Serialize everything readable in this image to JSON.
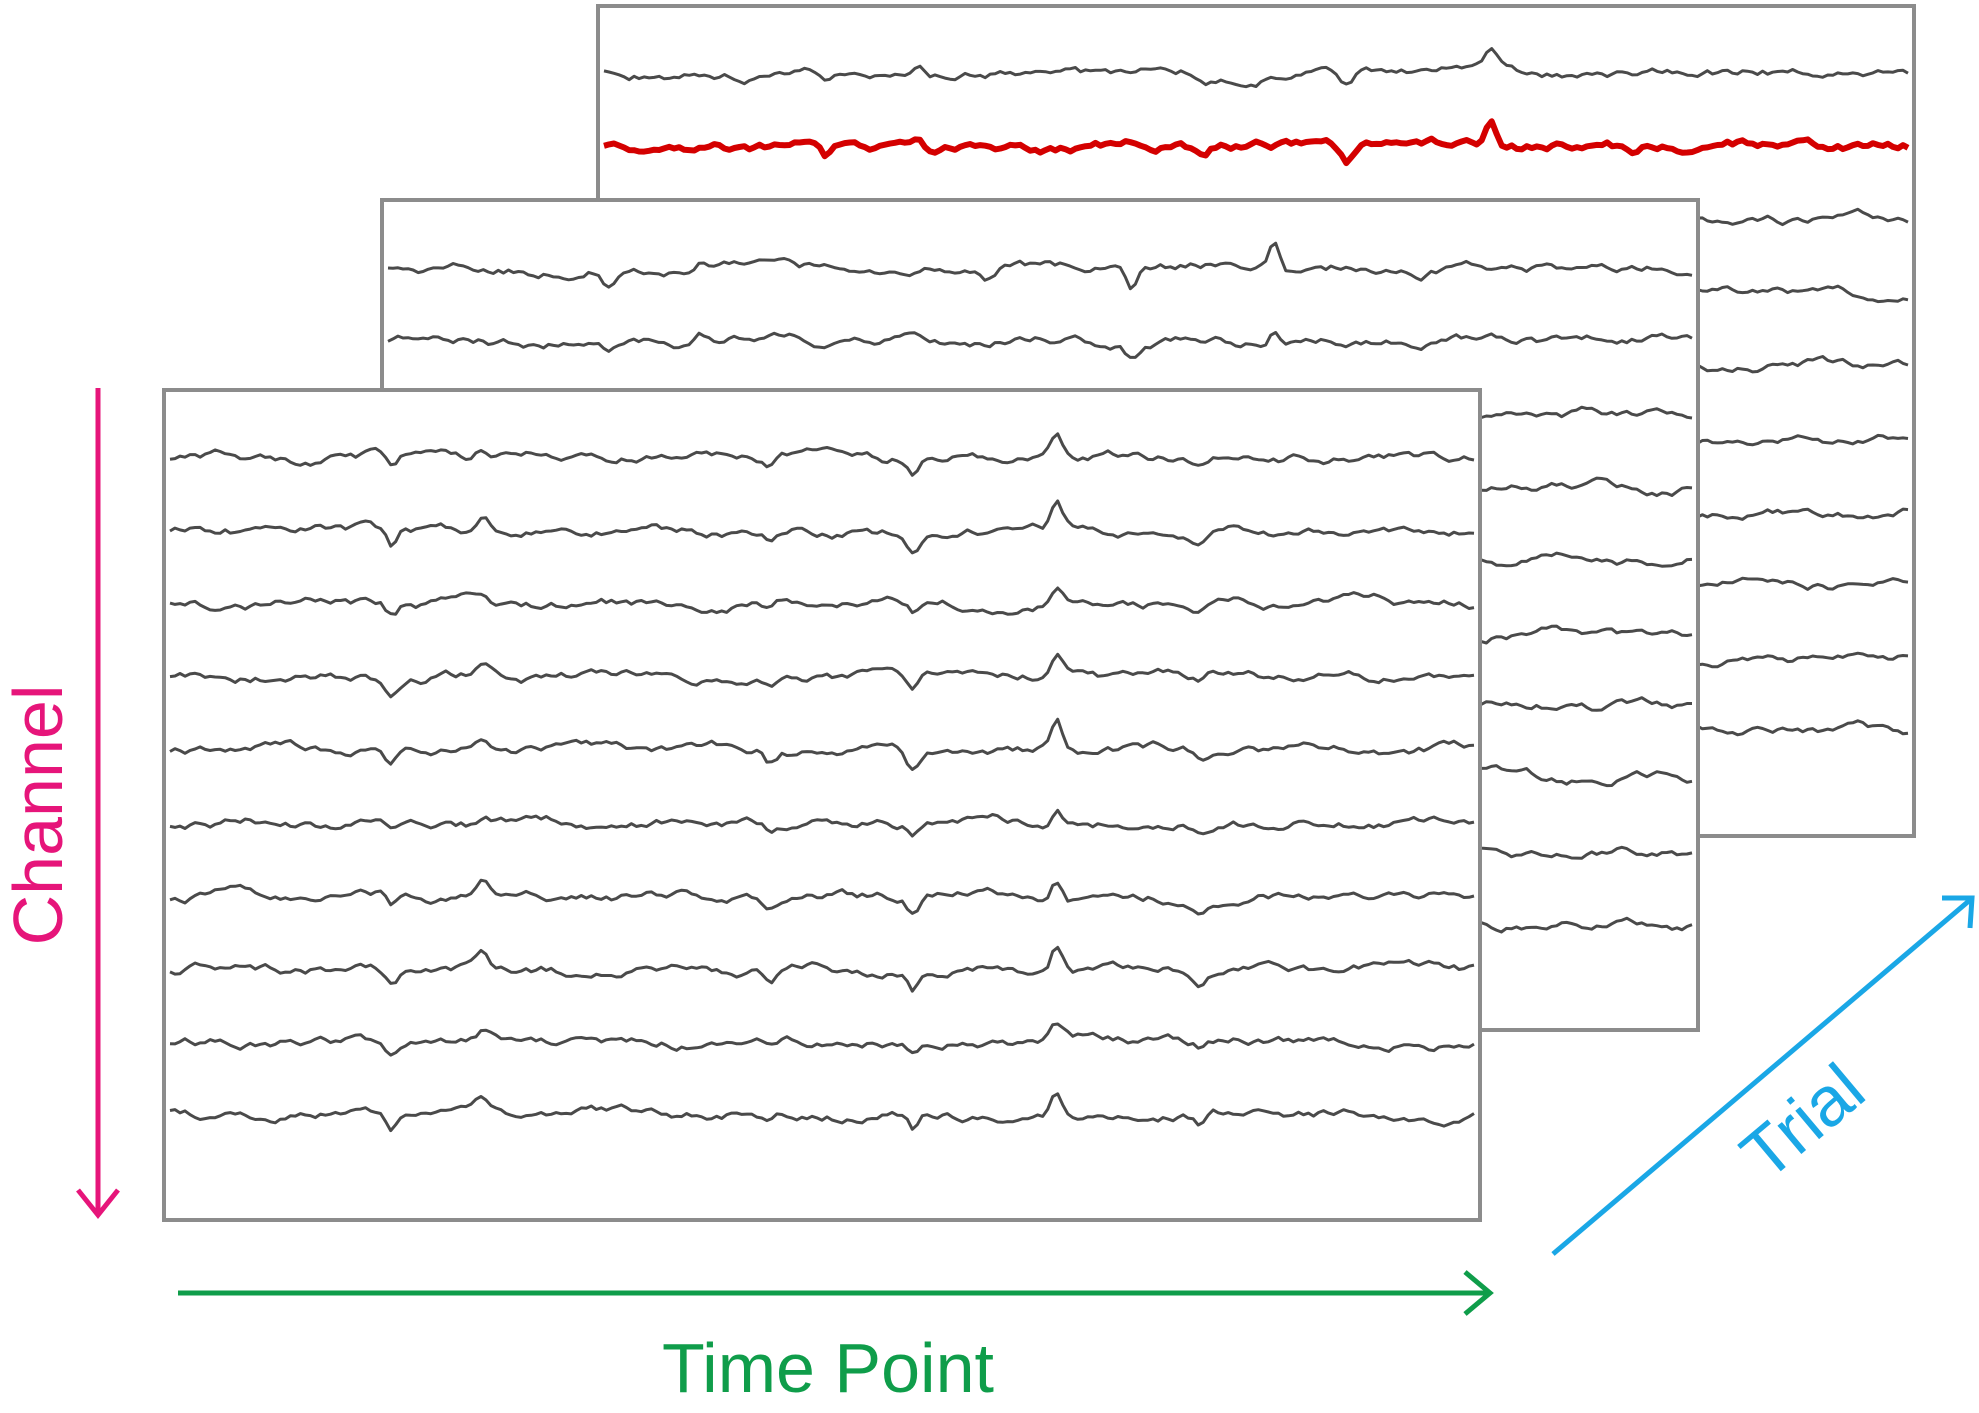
{
  "axes": {
    "channel": {
      "label": "Channel",
      "color": "#E6157A"
    },
    "time": {
      "label": "Time Point",
      "color": "#0F9D4A"
    },
    "trial": {
      "label": "Trial",
      "color": "#1AA7E6"
    }
  },
  "style": {
    "trace_color": "#4a4a4a",
    "highlight_color": "#D40000",
    "frame_color": "#8c8c8c"
  },
  "trials": [
    {
      "name": "trial-back",
      "channels": 10,
      "highlight_channel": 2
    },
    {
      "name": "trial-middle",
      "channels": 10,
      "highlight_channel": null
    },
    {
      "name": "trial-front",
      "channels": 10,
      "highlight_channel": null
    }
  ]
}
